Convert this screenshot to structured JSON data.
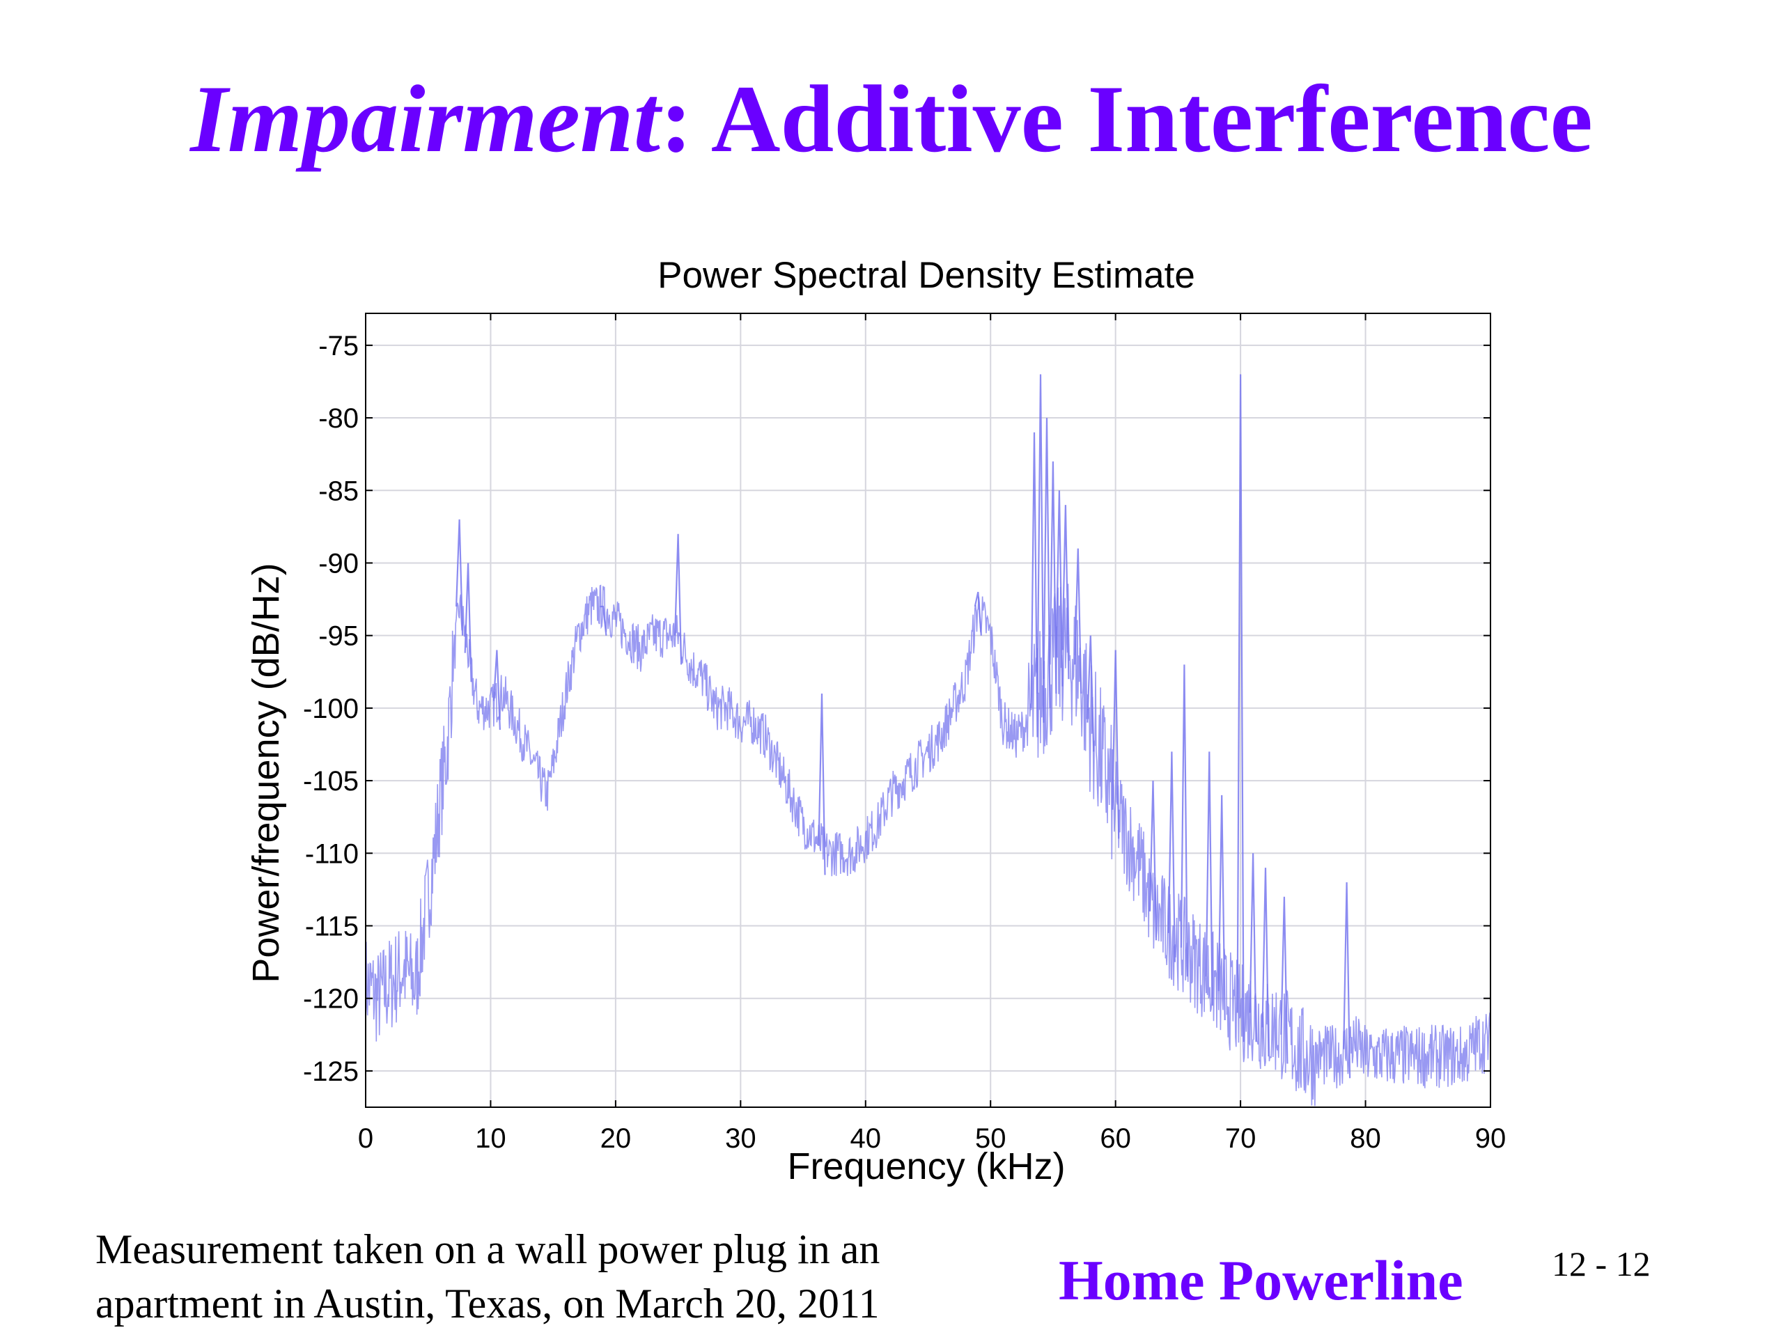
{
  "slide": {
    "title_em": "Impairment",
    "title_rest": ": Additive Interference",
    "caption_line1": "Measurement taken on a wall power plug in an",
    "caption_line2": "apartment in Austin, Texas, on March 20, 2011",
    "footer_title": "Home Powerline",
    "page_number": "12 - 12"
  },
  "colors": {
    "title": "#6a00ff",
    "trace": "#7777ee",
    "grid": "#d6d6de",
    "axis": "#000000"
  },
  "chart_data": {
    "type": "line",
    "title": "Power Spectral Density Estimate",
    "xlabel": "Frequency (kHz)",
    "ylabel": "Power/frequency (dB/Hz)",
    "xlim": [
      0,
      90
    ],
    "ylim": [
      -127.5,
      -72.8
    ],
    "xticks": [
      0,
      10,
      20,
      30,
      40,
      50,
      60,
      70,
      80,
      90
    ],
    "yticks": [
      -75,
      -80,
      -85,
      -90,
      -95,
      -100,
      -105,
      -110,
      -115,
      -120,
      -125
    ],
    "grid": true,
    "legend": "none",
    "series": [
      {
        "baseline": {
          "x": [
            0,
            1,
            2,
            3,
            4,
            4.5,
            5,
            5.5,
            6,
            6.5,
            7,
            7.5,
            8,
            8.5,
            9,
            10,
            11,
            12,
            13,
            14,
            14.5,
            15,
            16,
            17,
            18,
            19,
            20,
            21,
            22,
            23,
            24,
            25,
            26,
            27,
            28,
            29,
            30,
            31,
            32,
            33,
            34,
            35,
            36,
            37,
            38,
            39,
            40,
            41,
            42,
            43,
            44,
            45,
            46,
            47,
            48,
            49,
            50,
            51,
            52,
            53,
            54,
            55,
            56,
            57,
            58,
            59,
            60,
            61,
            62,
            63,
            64,
            65,
            66,
            67,
            68,
            69,
            70,
            71,
            72,
            73,
            74,
            75,
            76,
            77,
            78,
            79,
            80,
            81,
            82,
            83,
            84,
            85,
            86,
            87,
            88,
            89,
            90
          ],
          "y": [
            -119,
            -120,
            -119,
            -118,
            -119,
            -116,
            -113,
            -110,
            -106,
            -103,
            -97,
            -93,
            -95,
            -98,
            -100,
            -100,
            -99,
            -101,
            -103,
            -105,
            -106,
            -104,
            -99,
            -95,
            -93,
            -93,
            -94,
            -95,
            -96,
            -95,
            -95,
            -95,
            -97,
            -98,
            -100,
            -100,
            -101,
            -101,
            -102,
            -104,
            -106,
            -108,
            -109,
            -110,
            -110,
            -110,
            -109,
            -108,
            -106,
            -105,
            -104,
            -103,
            -102,
            -100,
            -98,
            -93,
            -95,
            -101,
            -102,
            -101,
            -99,
            -97,
            -96,
            -97,
            -101,
            -104,
            -107,
            -109,
            -111,
            -114,
            -115,
            -116,
            -117,
            -118,
            -119,
            -120,
            -121,
            -121,
            -122,
            -122,
            -123,
            -124,
            -124,
            -124,
            -124,
            -123,
            -124,
            -124,
            -124,
            -124,
            -124,
            -124,
            -124,
            -124,
            -124,
            -123,
            -123
          ]
        },
        "spikes": {
          "x": [
            7.5,
            8.2,
            10.5,
            19.0,
            25.0,
            36.5,
            49.0,
            53.5,
            54.0,
            54.5,
            55.0,
            55.5,
            56.0,
            57.0,
            58.0,
            60.0,
            63.0,
            64.5,
            65.5,
            67.5,
            68.5,
            70.0,
            71.0,
            72.0,
            73.5,
            78.5
          ],
          "y": [
            -87,
            -90,
            -96,
            -93,
            -88,
            -99,
            -92,
            -81,
            -77,
            -80,
            -83,
            -85,
            -86,
            -89,
            -95,
            -96,
            -105,
            -103,
            -97,
            -103,
            -106,
            -77,
            -110,
            -111,
            -113,
            -112
          ]
        }
      }
    ]
  }
}
